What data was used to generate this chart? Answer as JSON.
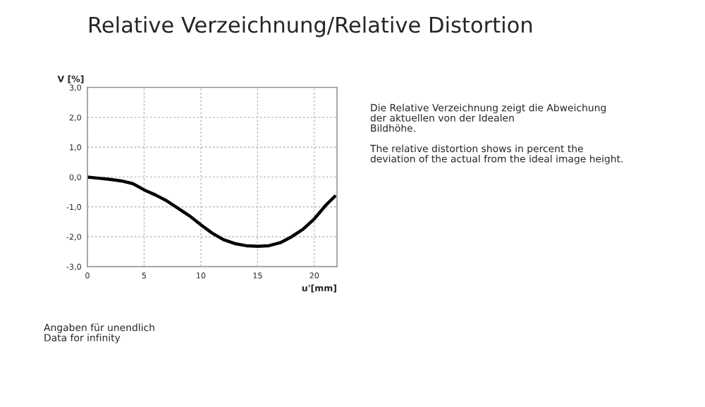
{
  "chart_data": {
    "type": "line",
    "title": "Relative Verzeichnung/Relative Distortion",
    "ylabel": "V [%]",
    "xlabel": "u'[mm]",
    "x": [
      0,
      1,
      2,
      3,
      4,
      5,
      6,
      7,
      8,
      9,
      10,
      11,
      12,
      13,
      14,
      15,
      16,
      17,
      18,
      19,
      20,
      21,
      21.8
    ],
    "series": [
      {
        "color": "#000000",
        "values": [
          0,
          -0.04,
          -0.08,
          -0.13,
          -0.22,
          -0.43,
          -0.6,
          -0.8,
          -1.05,
          -1.3,
          -1.6,
          -1.88,
          -2.1,
          -2.23,
          -2.3,
          -2.32,
          -2.3,
          -2.2,
          -2.0,
          -1.75,
          -1.4,
          -0.95,
          -0.65
        ]
      }
    ],
    "xlim": [
      0,
      22
    ],
    "xticks": [
      0,
      5,
      10,
      15,
      20
    ],
    "ylim": [
      -3,
      3
    ],
    "yticks": [
      {
        "value": -3,
        "label": "-3,0"
      },
      {
        "value": -2,
        "label": "-2,0"
      },
      {
        "value": -1,
        "label": "-1,0"
      },
      {
        "value": 0,
        "label": "0,0"
      },
      {
        "value": 1,
        "label": "1,0"
      },
      {
        "value": 2,
        "label": "2,0"
      },
      {
        "value": 3,
        "label": "3,0"
      }
    ],
    "grid": true,
    "legend": false,
    "marker": "none",
    "line_style": "solid",
    "annotations": [
      "Die Relative Verzeichnung zeigt die Abweichung\nder aktuellen von der Idealen\nBildhöhe.\n\nThe relative distortion shows in percent the\ndeviation of the actual from the ideal image height.",
      "Angaben für unendlich\nData for infinity"
    ]
  }
}
